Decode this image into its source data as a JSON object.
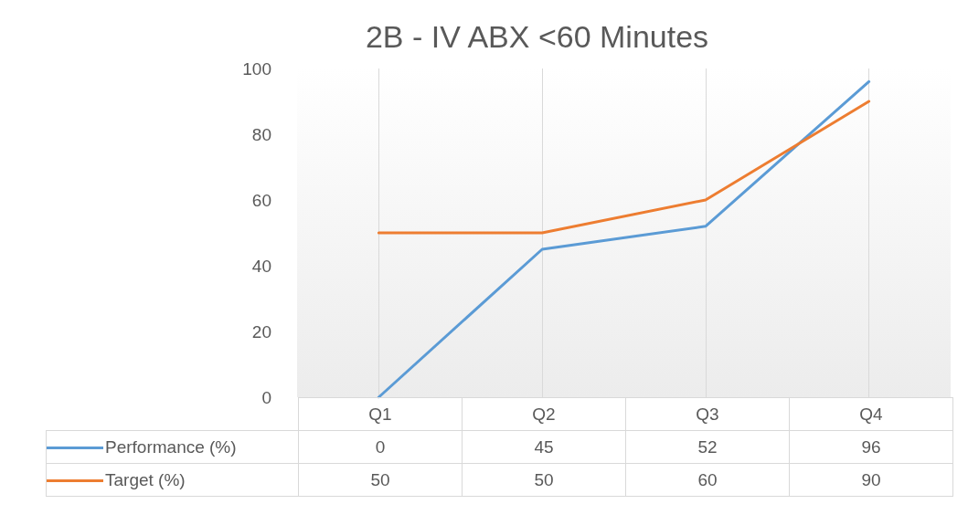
{
  "chart_data": {
    "type": "line",
    "title": "2B - IV ABX <60 Minutes",
    "categories": [
      "Q1",
      "Q2",
      "Q3",
      "Q4"
    ],
    "series": [
      {
        "name": "Performance (%)",
        "color": "#5b9bd5",
        "values": [
          0,
          45,
          52,
          96
        ]
      },
      {
        "name": "Target (%)",
        "color": "#ed7d31",
        "values": [
          50,
          50,
          60,
          90
        ]
      }
    ],
    "ylim": [
      0,
      100
    ],
    "yticks": [
      0,
      20,
      40,
      60,
      80,
      100
    ],
    "grid": "x",
    "legend": "bottom left",
    "data_labels": true,
    "marker": "none",
    "line_style": "solid"
  }
}
